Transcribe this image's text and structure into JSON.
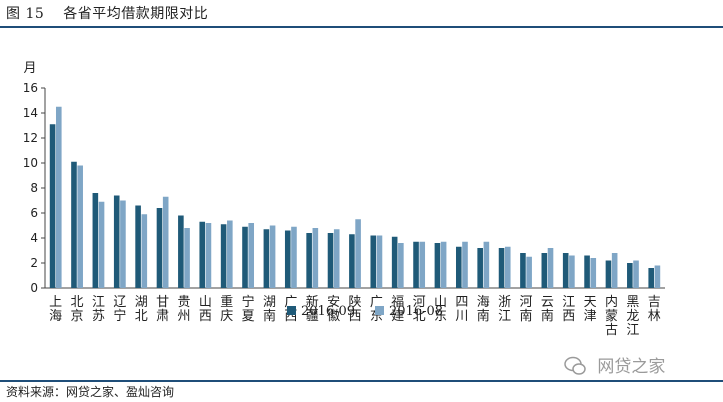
{
  "figure": {
    "label": "图",
    "number": "15",
    "title": "各省平均借款期限对比"
  },
  "source_text": "资料来源：网贷之家、盈灿咨询",
  "watermark": {
    "text": "网贷之家",
    "icon": "wechat-logo-icon"
  },
  "colors": {
    "series1": "#1f5a78",
    "series2": "#7fa6c6",
    "rule": "#1f4e79"
  },
  "chart_data": {
    "type": "bar",
    "ylabel": "月",
    "ylim": [
      0,
      16
    ],
    "yticks": [
      0,
      2,
      4,
      6,
      8,
      10,
      12,
      14,
      16
    ],
    "grid": false,
    "legend_position": "bottom",
    "categories": [
      "上海",
      "北京",
      "江苏",
      "辽宁",
      "湖北",
      "甘肃",
      "贵州",
      "山西",
      "重庆",
      "宁夏",
      "湖南",
      "广西",
      "新疆",
      "安徽",
      "陕西",
      "广东",
      "福建",
      "河北",
      "山东",
      "四川",
      "海南",
      "浙江",
      "河南",
      "云南",
      "江西",
      "天津",
      "内蒙古",
      "黑龙江",
      "吉林"
    ],
    "series": [
      {
        "name": "2016-09",
        "values": [
          13.1,
          10.1,
          7.6,
          7.4,
          6.6,
          6.4,
          5.8,
          5.3,
          5.1,
          4.9,
          4.7,
          4.6,
          4.4,
          4.4,
          4.3,
          4.2,
          4.1,
          3.7,
          3.6,
          3.3,
          3.2,
          3.2,
          2.8,
          2.8,
          2.8,
          2.6,
          2.2,
          2.0,
          1.6
        ]
      },
      {
        "name": "2016-08",
        "values": [
          14.5,
          9.8,
          6.9,
          7.0,
          5.9,
          7.3,
          4.8,
          5.2,
          5.4,
          5.2,
          5.0,
          4.9,
          4.8,
          4.7,
          5.5,
          4.2,
          3.6,
          3.7,
          3.7,
          3.7,
          3.7,
          3.3,
          2.5,
          3.2,
          2.6,
          2.4,
          2.8,
          2.2,
          1.8
        ]
      }
    ]
  }
}
